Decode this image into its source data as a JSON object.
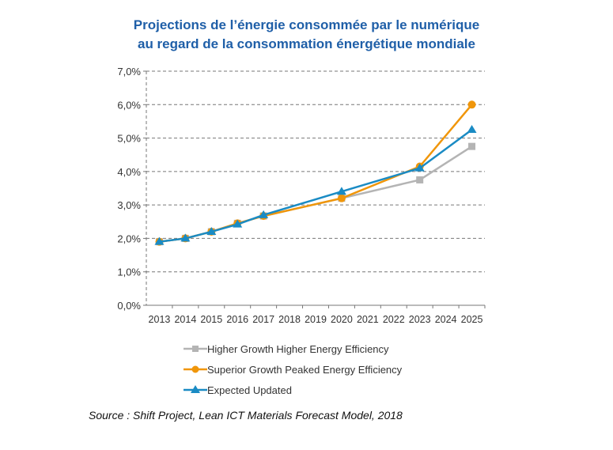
{
  "chart_data": {
    "type": "line",
    "title": "Projections de l’énergie consommée par le numérique au regard de la consommation énergétique mondiale",
    "title_lines": [
      "Projections de l’énergie consommée par le numérique",
      "au regard de la consommation énergétique mondiale"
    ],
    "categories": [
      "2013",
      "2014",
      "2015",
      "2016",
      "2017",
      "2018",
      "2019",
      "2020",
      "2021",
      "2022",
      "2023",
      "2024",
      "2025"
    ],
    "ylim": [
      0,
      7
    ],
    "yticks": [
      "0,0%",
      "1,0%",
      "2,0%",
      "3,0%",
      "4,0%",
      "5,0%",
      "6,0%",
      "7,0%"
    ],
    "grid": true,
    "legend_position": "bottom",
    "series": [
      {
        "name": "Higher Growth Higher Energy Efficiency",
        "color": "#b4b4b4",
        "marker": "square",
        "values": [
          1.9,
          2.0,
          2.2,
          2.45,
          2.67,
          null,
          null,
          3.2,
          null,
          null,
          3.75,
          null,
          4.75
        ]
      },
      {
        "name": "Superior Growth Peaked Energy Efficiency",
        "color": "#f0960a",
        "marker": "circle",
        "values": [
          1.9,
          2.0,
          2.2,
          2.45,
          2.67,
          null,
          null,
          3.2,
          null,
          null,
          4.15,
          null,
          6.0
        ]
      },
      {
        "name": "Expected Updated",
        "color": "#1a8bc4",
        "marker": "triangle",
        "values": [
          1.9,
          2.0,
          2.2,
          2.42,
          2.7,
          null,
          null,
          3.4,
          null,
          null,
          4.1,
          null,
          5.25
        ]
      }
    ]
  },
  "source": "Source : Shift Project, Lean ICT Materials Forecast Model, 2018"
}
